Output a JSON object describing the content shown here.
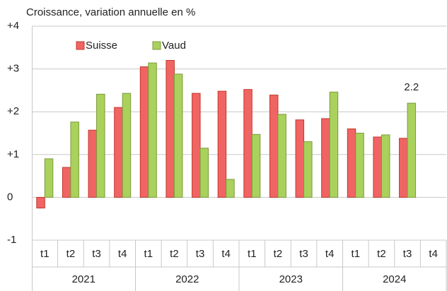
{
  "chart_data": {
    "type": "bar",
    "title": "Croissance, variation annuelle en %",
    "categories": [
      "t1",
      "t2",
      "t3",
      "t4",
      "t1",
      "t2",
      "t3",
      "t4",
      "t1",
      "t2",
      "t3",
      "t4",
      "t1",
      "t2",
      "t3",
      "t4"
    ],
    "category_groups": [
      "2021",
      "2022",
      "2023",
      "2024"
    ],
    "series": [
      {
        "name": "Suisse",
        "color": "#f06464",
        "stroke": "#c0392b",
        "values": [
          -0.25,
          0.7,
          1.57,
          2.1,
          3.05,
          3.2,
          2.43,
          2.48,
          2.52,
          2.39,
          1.81,
          1.84,
          1.6,
          1.41,
          1.38,
          null
        ]
      },
      {
        "name": "Vaud",
        "color": "#a9d15c",
        "stroke": "#7d9b3c",
        "values": [
          0.9,
          1.76,
          2.41,
          2.43,
          3.14,
          2.88,
          1.15,
          0.42,
          1.47,
          1.94,
          1.3,
          2.46,
          1.5,
          1.46,
          2.2,
          null
        ],
        "value_labels": [
          null,
          null,
          null,
          null,
          null,
          null,
          null,
          null,
          null,
          null,
          null,
          null,
          null,
          null,
          "2.2",
          null
        ]
      }
    ],
    "ylim": [
      -1,
      4
    ],
    "yticks": [
      -1,
      0,
      {
        "value": 1,
        "label": "+1"
      },
      {
        "value": 2,
        "label": "+2"
      },
      {
        "value": 3,
        "label": "+3"
      },
      {
        "value": 4,
        "label": "+4"
      }
    ],
    "grid": true,
    "legend": "top-left"
  }
}
